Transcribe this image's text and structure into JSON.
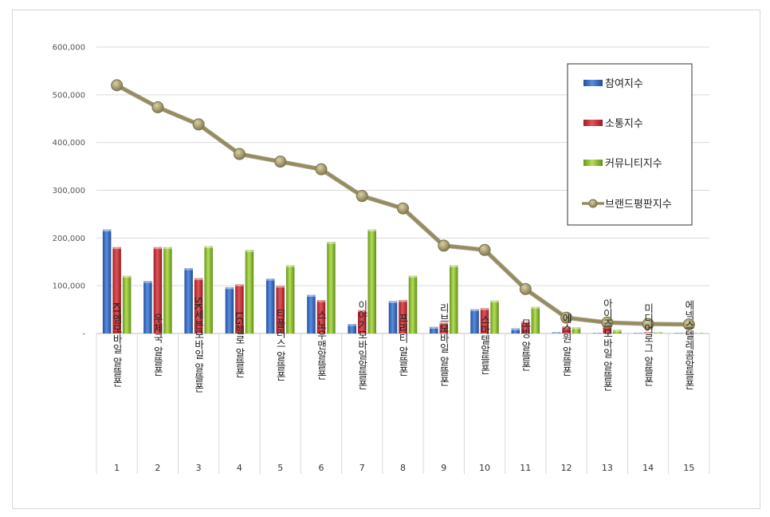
{
  "chart_data": {
    "type": "bar",
    "title": "",
    "xlabel": "",
    "ylabel": "",
    "ylim": [
      0,
      600000
    ],
    "yticks": [
      "-",
      "100,000",
      "200,000",
      "300,000",
      "400,000",
      "500,000",
      "600,000"
    ],
    "grid": true,
    "legend_position": "top-right",
    "categories": [
      "KT엠모바일 알뜰폰",
      "우체국 알뜰폰",
      "SK세븐모바일 알뜰폰",
      "LG헬로 알뜰폰",
      "티플러스 알뜰폰",
      "스노우맨알뜰폰",
      "이야기모바일알뜰폰",
      "프리티 알뜰폰",
      "리브모바일 알뜰폰",
      "스마텔알뜰폰",
      "모빙 알뜰폰",
      "에스원 알뜰폰",
      "아이즈모바일 알뜰폰",
      "미디어로그 알뜰폰",
      "에넥스텔레콤알뜰폰"
    ],
    "ranks": [
      "1",
      "2",
      "3",
      "4",
      "5",
      "6",
      "7",
      "8",
      "9",
      "10",
      "11",
      "12",
      "13",
      "14",
      "15"
    ],
    "series": [
      {
        "name": "참여지수",
        "kind": "bar",
        "color": "#3b6fc4",
        "values": [
          218000,
          110000,
          137000,
          97000,
          115000,
          81000,
          20000,
          68000,
          14000,
          51000,
          11000,
          3000,
          1000,
          1000,
          1000
        ]
      },
      {
        "name": "소통지수",
        "kind": "bar",
        "color": "#c9343a",
        "values": [
          181000,
          181000,
          116000,
          103000,
          100000,
          70000,
          49000,
          70000,
          23000,
          53000,
          25000,
          15000,
          16000,
          3000,
          1000
        ]
      },
      {
        "name": "커뮤니티지수",
        "kind": "bar",
        "color": "#8fbf2e",
        "values": [
          121000,
          181000,
          183000,
          175000,
          143000,
          192000,
          218000,
          121000,
          143000,
          69000,
          56000,
          13000,
          8000,
          3000,
          1000
        ]
      },
      {
        "name": "브랜드평판지수",
        "kind": "line",
        "color": "#958c5e",
        "values": [
          520000,
          474000,
          438000,
          376000,
          360000,
          344000,
          288000,
          262000,
          184000,
          175000,
          93000,
          33000,
          23000,
          20000,
          19000
        ]
      }
    ]
  }
}
